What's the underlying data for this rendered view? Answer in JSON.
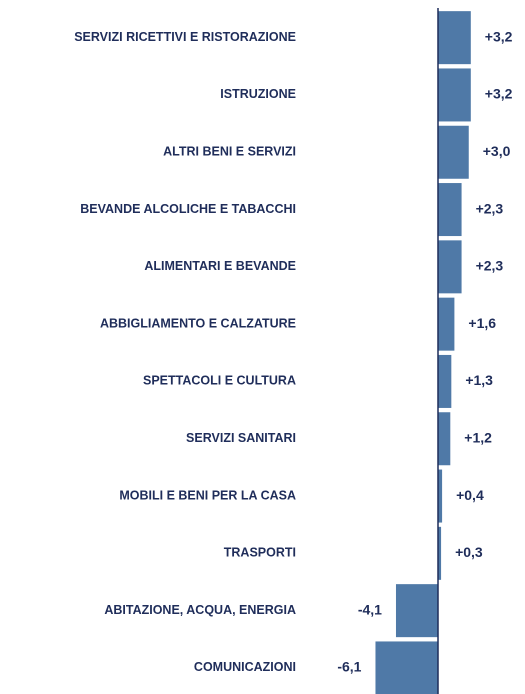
{
  "chart_data": {
    "type": "hbar",
    "categories": [
      "SERVIZI RICETTIVI E RISTORAZIONE",
      "ISTRUZIONE",
      "ALTRI BENI E SERVIZI",
      "BEVANDE ALCOLICHE E TABACCHI",
      "ALIMENTARI E BEVANDE",
      "ABBIGLIAMENTO E CALZATURE",
      "SPETTACOLI E CULTURA",
      "SERVIZI SANITARI",
      "MOBILI E BENI PER LA CASA",
      "TRASPORTI",
      "ABITAZIONE, ACQUA, ENERGIA",
      "COMUNICAZIONI"
    ],
    "values": [
      3.2,
      3.2,
      3.0,
      2.3,
      2.3,
      1.6,
      1.3,
      1.2,
      0.4,
      0.3,
      -4.1,
      -6.1
    ],
    "value_labels": [
      "+3,2",
      "+3,2",
      "+3,0",
      "+2,3",
      "+2,3",
      "+1,6",
      "+1,3",
      "+1,2",
      "+0,4",
      "+0,3",
      "-4,1",
      "-6,1"
    ],
    "color": "#4f79a7",
    "xlim": [
      -7,
      4
    ]
  }
}
